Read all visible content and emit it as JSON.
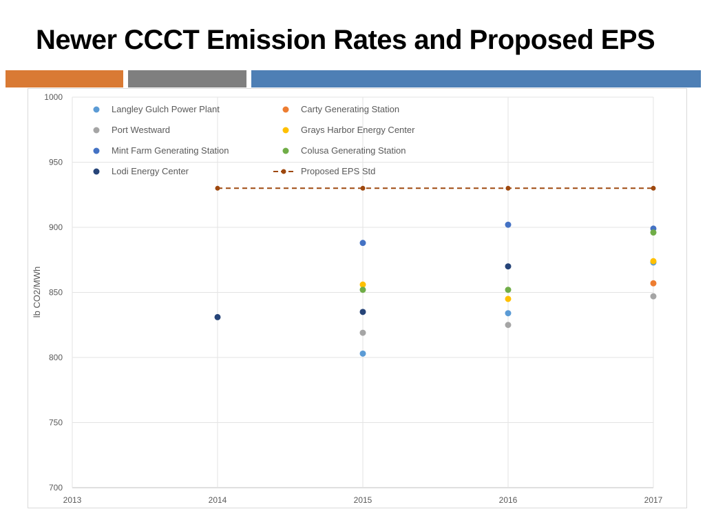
{
  "slide": {
    "title": "Newer CCCT Emission Rates and Proposed EPS",
    "accent_bars": [
      "#d97a34",
      "#7f7f7f",
      "#4e7fb5"
    ]
  },
  "chart_data": {
    "type": "scatter",
    "title": "",
    "xlabel": "",
    "ylabel": "lb CO2/MWh",
    "xlim": [
      2013,
      2017
    ],
    "ylim": [
      700,
      1000
    ],
    "xticks": [
      2013,
      2014,
      2015,
      2016,
      2017
    ],
    "yticks": [
      700,
      750,
      800,
      850,
      900,
      950,
      1000
    ],
    "grid": true,
    "legend_position": "top-left",
    "series": [
      {
        "name": "Langley Gulch Power Plant",
        "color": "#5b9bd5",
        "points": [
          [
            2015,
            803
          ],
          [
            2016,
            834
          ],
          [
            2017,
            873
          ]
        ]
      },
      {
        "name": "Carty Generating Station",
        "color": "#ed7d31",
        "points": [
          [
            2017,
            857
          ]
        ]
      },
      {
        "name": "Port Westward",
        "color": "#a5a5a5",
        "points": [
          [
            2015,
            819
          ],
          [
            2016,
            825
          ],
          [
            2017,
            847
          ]
        ]
      },
      {
        "name": "Grays Harbor Energy Center",
        "color": "#ffc000",
        "points": [
          [
            2015,
            856
          ],
          [
            2016,
            845
          ],
          [
            2017,
            874
          ]
        ]
      },
      {
        "name": "Mint Farm Generating Station",
        "color": "#4472c4",
        "points": [
          [
            2015,
            888
          ],
          [
            2016,
            902
          ],
          [
            2017,
            899
          ]
        ]
      },
      {
        "name": "Colusa Generating Station",
        "color": "#70ad47",
        "points": [
          [
            2015,
            852
          ],
          [
            2016,
            852
          ],
          [
            2017,
            896
          ]
        ]
      },
      {
        "name": "Lodi Energy Center",
        "color": "#264478",
        "points": [
          [
            2014,
            831
          ],
          [
            2015,
            835
          ],
          [
            2016,
            870
          ]
        ]
      },
      {
        "name": "Proposed EPS Std",
        "color": "#9e480e",
        "line": "dashed",
        "points": [
          [
            2014,
            930
          ],
          [
            2015,
            930
          ],
          [
            2016,
            930
          ],
          [
            2017,
            930
          ]
        ]
      }
    ]
  }
}
